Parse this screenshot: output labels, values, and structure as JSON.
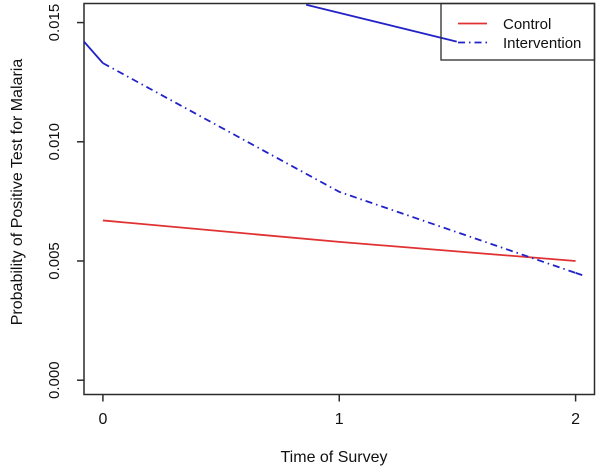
{
  "figure": {
    "kind": "R base-graphics line plot",
    "background": "#ffffff",
    "border_color": "#2b2b2b",
    "text_color": "#111111"
  },
  "chart_data": {
    "type": "line",
    "title": "",
    "xlabel": "Time of Survey",
    "ylabel": "Probability of Positive Test for Malaria",
    "x": [
      0,
      1,
      2
    ],
    "xtick_labels": [
      "0",
      "1",
      "2"
    ],
    "xtick_values": [
      0,
      1,
      2
    ],
    "ytick_labels": [
      "0.000",
      "0.005",
      "0.010",
      "0.015"
    ],
    "ytick_values": [
      0,
      0.005,
      0.01,
      0.015
    ],
    "xlim": [
      -0.08,
      2.08
    ],
    "ylim": [
      -0.0006,
      0.0158
    ],
    "grid": false,
    "legend_position": "topright",
    "series": [
      {
        "name": "Control",
        "color": "#e03232",
        "line_style": "solid",
        "values": [
          0.0067,
          0.0058,
          0.005
        ]
      },
      {
        "name": "Intervention",
        "color": "#2222c8",
        "line_style": "dotdash",
        "values": [
          0.0133,
          0.0079,
          0.0045
        ]
      }
    ],
    "extra_segments": [
      {
        "name": "intervention-left-border-clip",
        "color": "#2222c8",
        "line_style": "solid",
        "points": [
          [
            -0.08,
            0.0142
          ],
          [
            0,
            0.0133
          ]
        ]
      },
      {
        "name": "upper-blue-line-clipped-at-top",
        "color": "#2222c8",
        "line_style": "solid",
        "points": [
          [
            0.86,
            0.01575
          ],
          [
            1.497,
            0.0142
          ]
        ]
      },
      {
        "name": "intervention-right-overhang",
        "color": "#2222c8",
        "line_style": "dotdash",
        "points": [
          [
            2,
            0.0045
          ],
          [
            2.03,
            0.0044
          ]
        ]
      }
    ],
    "legend": {
      "entries": [
        {
          "label": "Control",
          "color": "#e03232",
          "line_style": "solid"
        },
        {
          "label": "Intervention",
          "color": "#2222c8",
          "line_style": "dotdash"
        }
      ]
    }
  }
}
